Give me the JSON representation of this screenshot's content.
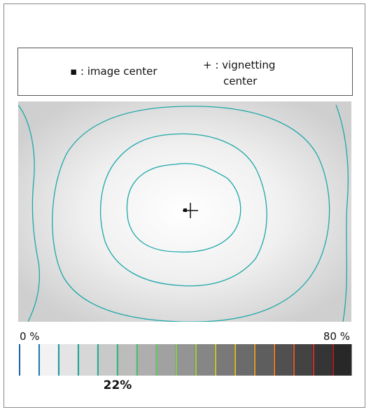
{
  "legend": {
    "image_center": "▪ : image center",
    "vignetting_center": [
      "+ : vignetting",
      "center"
    ]
  },
  "scale": {
    "min_label": "0 %",
    "max_label": "80 %",
    "value_label": "22%"
  }
}
